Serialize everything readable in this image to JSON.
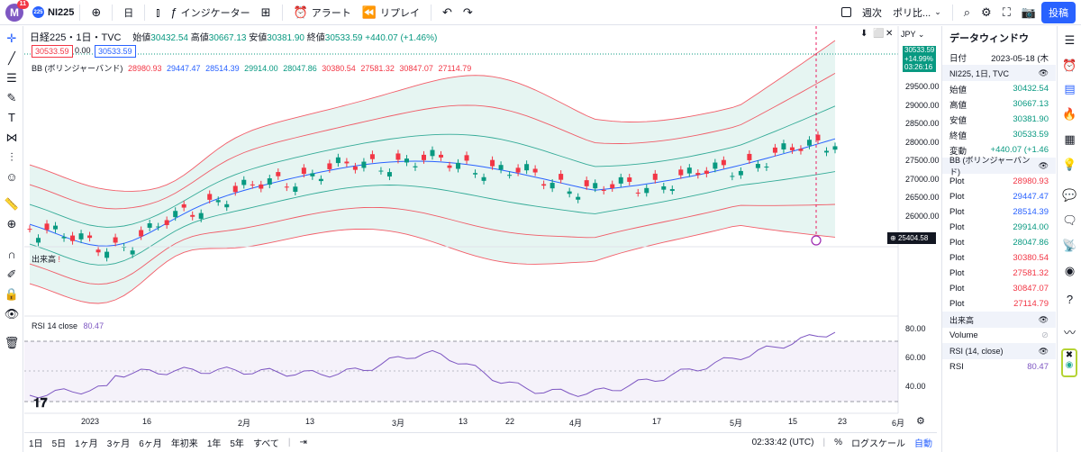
{
  "topbar": {
    "avatar_letter": "M",
    "notifications": "11",
    "symbol": "NI225",
    "symbol_logo": "225",
    "interval": "日",
    "indicators": "インジケーター",
    "alert": "アラート",
    "replay": "リプレイ",
    "weekly_label": "週次",
    "poli_label": "ポリ比...",
    "post_button": "投稿"
  },
  "legend": {
    "title": "日経225・1日・TVC",
    "open_label": "始値",
    "open": "30432.54",
    "high_label": "高値",
    "high": "30667.13",
    "low_label": "安値",
    "low": "30381.90",
    "close_label": "終値",
    "close": "30533.59",
    "change": "+440.07 (+1.46%)",
    "price_box_1": "30533.59",
    "price_box_2": "0.00",
    "price_box_3": "30533.59",
    "bb_label": "BB (ボリンジャーバンド)",
    "bb_values": [
      "28980.93",
      "29447.47",
      "28514.39",
      "29914.00",
      "28047.86",
      "30380.54",
      "27581.32",
      "30847.07",
      "27114.79"
    ],
    "currency": "JPY",
    "volume_label": "出来高",
    "rsi_label": "RSI 14 close",
    "rsi_value": "80.47"
  },
  "price_axis": {
    "ticks": [
      "29500.00",
      "29000.00",
      "28500.00",
      "28000.00",
      "27500.00",
      "27000.00",
      "26500.00",
      "26000.00"
    ],
    "last_price": "30533.59",
    "last_change": "+14.99%",
    "countdown": "03:26:16",
    "cursor_price": "25404.58"
  },
  "rsi_axis": {
    "ticks": [
      "80.00",
      "60.00",
      "40.00"
    ]
  },
  "time_axis": {
    "ticks": [
      "2023",
      "16",
      "2月",
      "13",
      "3月",
      "13",
      "22",
      "4月",
      "17",
      "5月",
      "15",
      "23",
      "6月"
    ]
  },
  "bottombar": {
    "ranges": [
      "1日",
      "5日",
      "1ヶ月",
      "3ヶ月",
      "6ヶ月",
      "年初来",
      "1年",
      "5年",
      "すべて"
    ],
    "time": "02:33:42 (UTC)",
    "percent": "%",
    "log": "ログスケール",
    "auto": "自動"
  },
  "data_window": {
    "title": "データウィンドウ",
    "date_label": "日付",
    "date": "2023-05-18 (木",
    "symbol_header": "NI225, 1日, TVC",
    "ohlc": [
      {
        "label": "始値",
        "value": "30432.54"
      },
      {
        "label": "高値",
        "value": "30667.13"
      },
      {
        "label": "安値",
        "value": "30381.90"
      },
      {
        "label": "終値",
        "value": "30533.59"
      },
      {
        "label": "変動",
        "value": "+440.07 (+1.46"
      }
    ],
    "bb_header": "BB (ボリンジャーバンド)",
    "plot_label": "Plot",
    "bb_plots": [
      {
        "value": "28980.93",
        "color": "#f23645"
      },
      {
        "value": "29447.47",
        "color": "#2962ff"
      },
      {
        "value": "28514.39",
        "color": "#2962ff"
      },
      {
        "value": "29914.00",
        "color": "#089981"
      },
      {
        "value": "28047.86",
        "color": "#089981"
      },
      {
        "value": "30380.54",
        "color": "#f23645"
      },
      {
        "value": "27581.32",
        "color": "#f23645"
      },
      {
        "value": "30847.07",
        "color": "#f23645"
      },
      {
        "value": "27114.79",
        "color": "#f23645"
      }
    ],
    "volume_header": "出来高",
    "volume_label": "Volume",
    "rsi_header": "RSI (14, close)",
    "rsi_label": "RSI",
    "rsi_value": "80.47"
  },
  "colors": {
    "up": "#089981",
    "down": "#f23645",
    "basis": "#2962ff",
    "rsi": "#7e57c2",
    "accent": "#2962ff"
  }
}
